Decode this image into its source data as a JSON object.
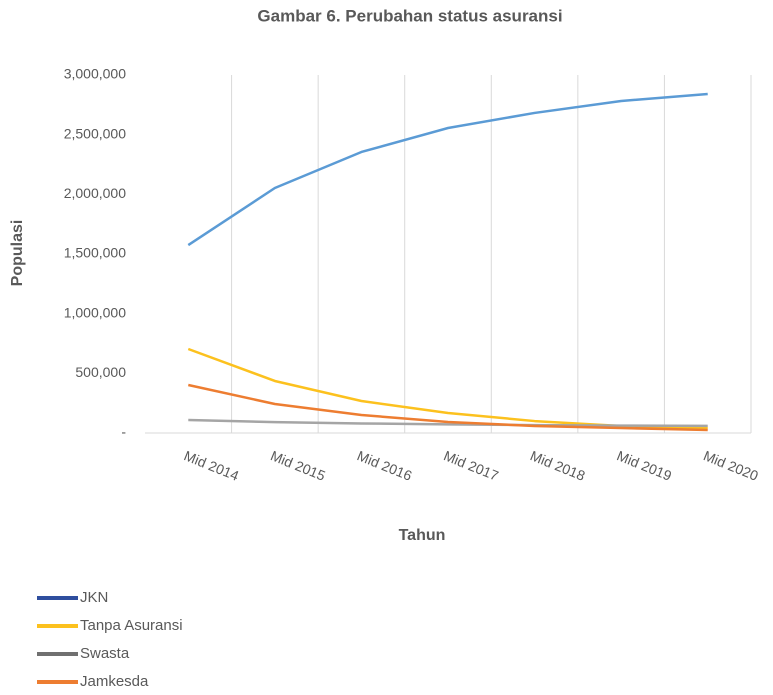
{
  "chart_data": {
    "type": "line",
    "title": "Gambar 6. Perubahan status asuransi",
    "x_label": "Tahun",
    "y_label": "Populasi",
    "categories": [
      "Mid 2014",
      "Mid 2015",
      "Mid 2016",
      "Mid 2017",
      "Mid 2018",
      "Mid 2019",
      "Mid 2020"
    ],
    "series": [
      {
        "name": "JKN",
        "color": "#5b9bd5",
        "legend_color": "#2e4e9e",
        "values": [
          1575000,
          2053000,
          2355000,
          2556000,
          2682000,
          2782000,
          2841000
        ]
      },
      {
        "name": "Tanpa Asuransi",
        "color": "#fcc11e",
        "legend_color": "#fcc11e",
        "values": [
          704000,
          436000,
          268000,
          168000,
          100000,
          59000,
          42000
        ]
      },
      {
        "name": "Swasta",
        "color": "#a5a5a5",
        "legend_color": "#707070",
        "values": [
          109000,
          91000,
          80000,
          72000,
          66000,
          62000,
          60000
        ]
      },
      {
        "name": "Jamkesda",
        "color": "#ed7d31",
        "legend_color": "#ed7d31",
        "values": [
          402000,
          243000,
          151000,
          92000,
          59000,
          42000,
          25000
        ]
      }
    ],
    "ylim": [
      0,
      3000000
    ],
    "yticks": [
      {
        "value": 0,
        "label": "-"
      },
      {
        "value": 500000,
        "label": "500,000"
      },
      {
        "value": 1000000,
        "label": "1,000,000"
      },
      {
        "value": 1500000,
        "label": "1,500,000"
      },
      {
        "value": 2000000,
        "label": "2,000,000"
      },
      {
        "value": 2500000,
        "label": "2,500,000"
      },
      {
        "value": 3000000,
        "label": "3,000,000"
      }
    ],
    "grid": true,
    "legend": "bottom-left"
  }
}
